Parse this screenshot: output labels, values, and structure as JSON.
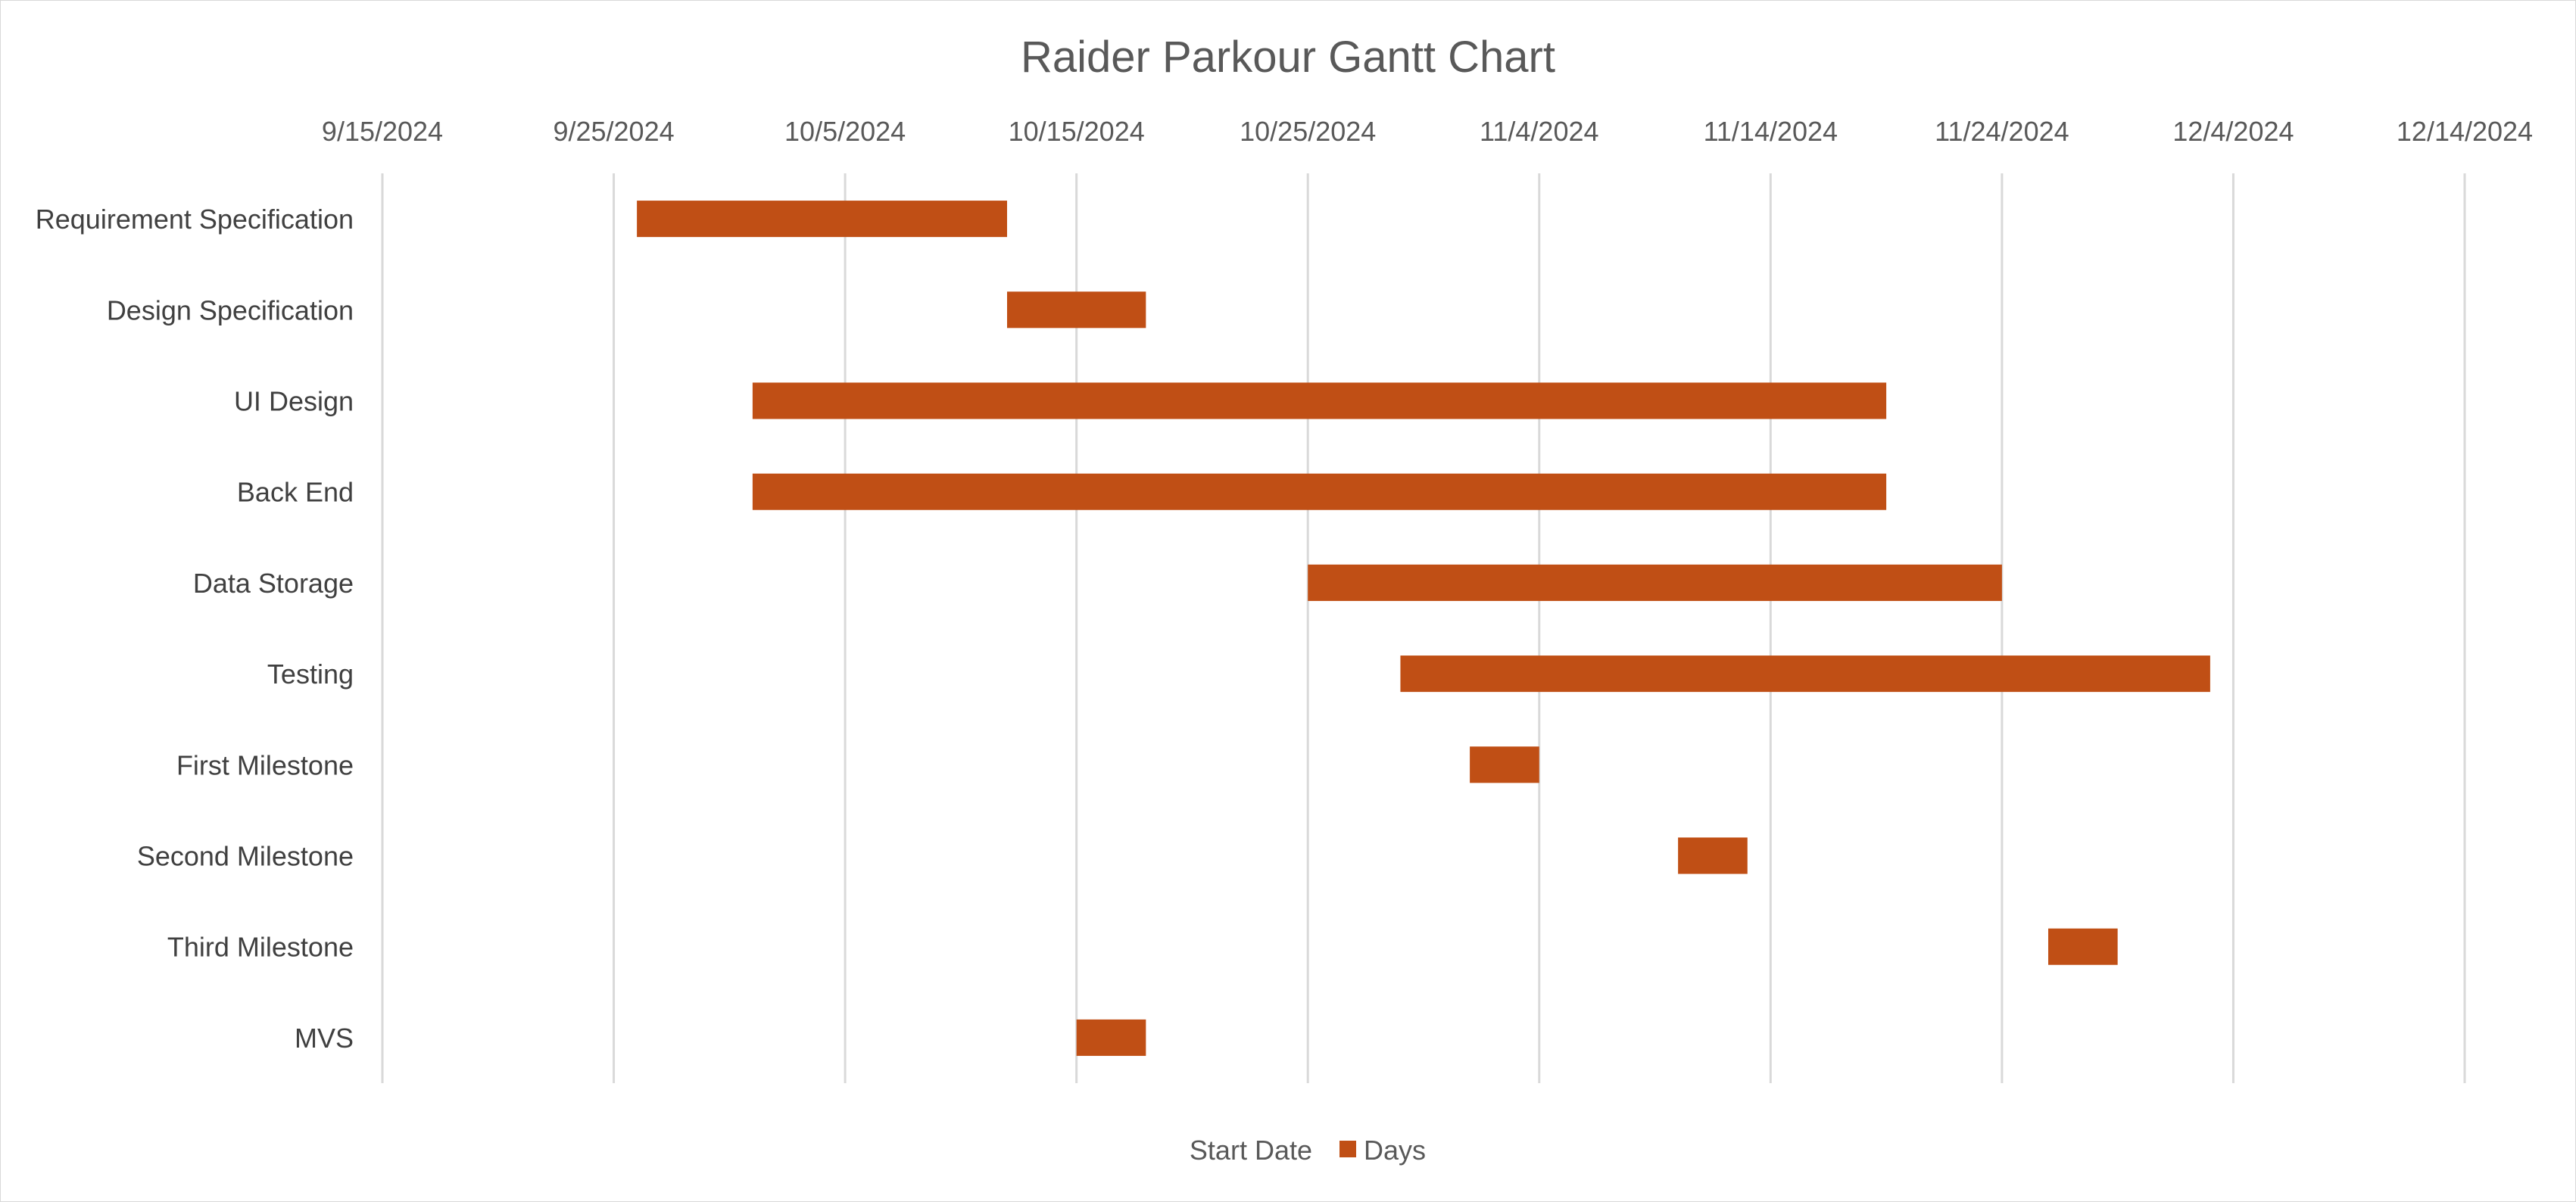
{
  "chart_data": {
    "type": "bar",
    "orientation": "horizontal",
    "stacked": true,
    "title": "Raider Parkour Gantt Chart",
    "xlabel": "",
    "ylabel": "",
    "x_axis_position": "top",
    "x_type": "date",
    "xlim": [
      "2024-09-15",
      "2024-12-14"
    ],
    "x_ticks": [
      "9/15/2024",
      "9/25/2024",
      "10/5/2024",
      "10/15/2024",
      "10/25/2024",
      "11/4/2024",
      "11/14/2024",
      "11/24/2024",
      "12/4/2024",
      "12/14/2024"
    ],
    "grid": true,
    "categories": [
      "Requirement Specification",
      "Design Specification",
      "UI Design",
      "Back End",
      "Data Storage",
      "Testing",
      "First Milestone",
      "Second Milestone",
      "Third Milestone",
      "MVS"
    ],
    "series": [
      {
        "name": "Start Date",
        "visible": false,
        "values": [
          "2024-09-26",
          "2024-10-12",
          "2024-10-01",
          "2024-10-01",
          "2024-10-25",
          "2024-10-29",
          "2024-11-01",
          "2024-11-10",
          "2024-11-26",
          "2024-10-15"
        ]
      },
      {
        "name": "Days",
        "color": "#c0504d",
        "values": [
          16,
          6,
          49,
          49,
          30,
          35,
          3,
          3,
          3,
          3
        ]
      }
    ],
    "legend": {
      "position": "bottom",
      "entries": [
        "Start Date",
        "Days"
      ]
    },
    "colors": {
      "bar": "#C04F15",
      "grid": "#D9D9D9",
      "text": "#595959"
    }
  }
}
